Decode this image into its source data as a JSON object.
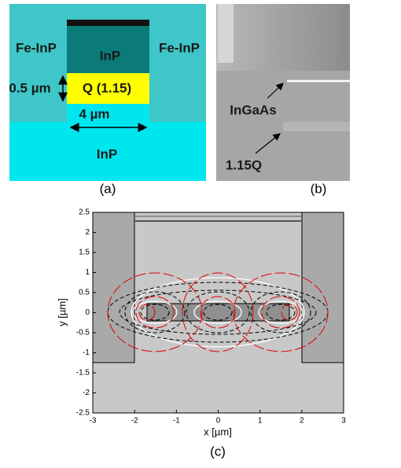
{
  "panel_a": {
    "labels": {
      "fe_inp_left": "Fe-InP",
      "fe_inp_right": "Fe-InP",
      "inp_top": "InP",
      "q_layer": "Q (1.15)",
      "thickness": "0.5 µm",
      "width": "4 µm",
      "inp_bottom": "InP"
    },
    "caption": "(a)"
  },
  "panel_b": {
    "labels": {
      "ingaas": "InGaAs",
      "q": "1.15Q"
    },
    "caption": "(b)"
  },
  "panel_c": {
    "xlabel": "x [µm]",
    "ylabel": "y [µm]",
    "xticks": [
      -3,
      -2,
      -1,
      0,
      1,
      2,
      3
    ],
    "yticks": [
      2.5,
      2,
      1.5,
      1,
      0.5,
      0,
      -0.5,
      -1,
      -1.5,
      -2,
      -2.5
    ],
    "caption": "(c)"
  }
}
